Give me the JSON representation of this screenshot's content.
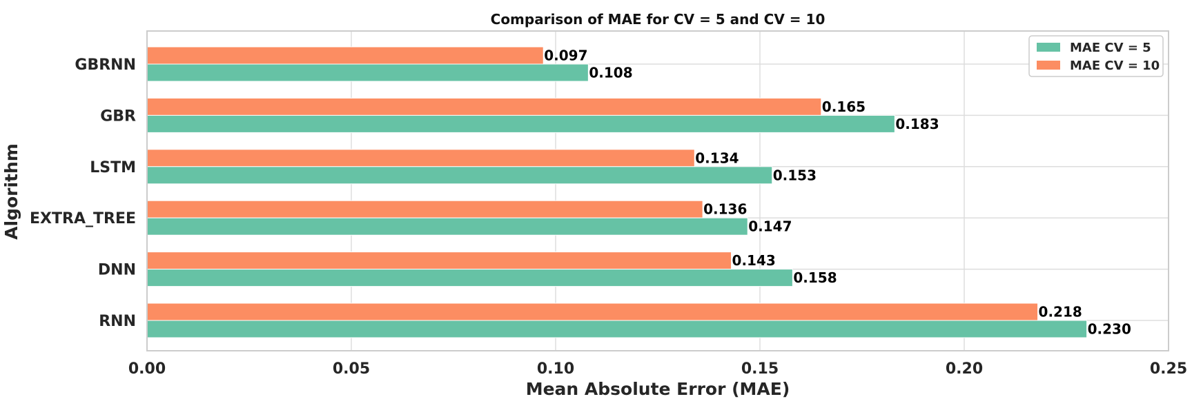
{
  "chart_data": {
    "type": "bar",
    "orientation": "horizontal",
    "title": "Comparison of MAE for CV = 5 and CV = 10",
    "xlabel": "Mean Absolute Error (MAE)",
    "ylabel": "Algorithm",
    "categories": [
      "GBRNN",
      "GBR",
      "LSTM",
      "EXTRA_TREE",
      "DNN",
      "RNN"
    ],
    "series": [
      {
        "name": "MAE CV = 5",
        "color": "#66c2a5",
        "values": [
          0.108,
          0.183,
          0.153,
          0.147,
          0.158,
          0.23
        ],
        "labels": [
          "0.108",
          "0.183",
          "0.153",
          "0.147",
          "0.158",
          "0.230"
        ]
      },
      {
        "name": "MAE CV = 10",
        "color": "#fc8d62",
        "values": [
          0.097,
          0.165,
          0.134,
          0.136,
          0.143,
          0.218
        ],
        "labels": [
          "0.097",
          "0.165",
          "0.134",
          "0.136",
          "0.143",
          "0.218"
        ]
      }
    ],
    "xlim": [
      0,
      0.25
    ],
    "xticks": [
      0.0,
      0.05,
      0.1,
      0.15,
      0.2,
      0.25
    ],
    "xtick_labels": [
      "0.00",
      "0.05",
      "0.10",
      "0.15",
      "0.20",
      "0.25"
    ],
    "grid": true,
    "legend_position": "top-right"
  }
}
